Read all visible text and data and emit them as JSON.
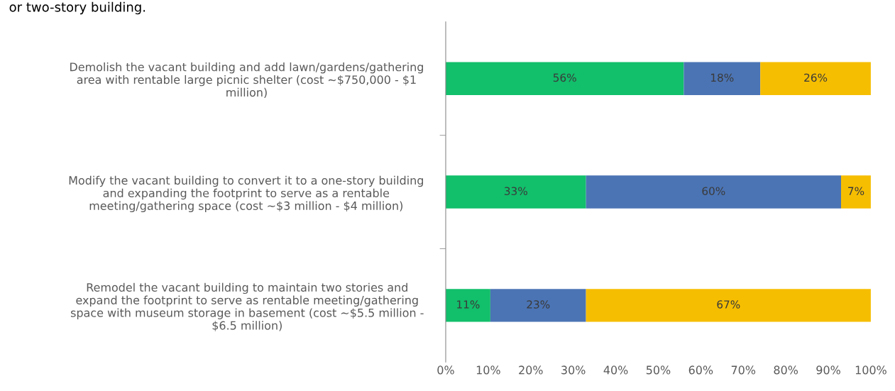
{
  "chart_data": {
    "type": "bar",
    "orientation": "horizontal",
    "stacked": true,
    "title": "or two-story building.",
    "categories": [
      "Demolish the vacant building and add lawn/gardens/gathering\narea with rentable large picnic shelter (cost ~$750,000 - $1\nmillion)",
      "Modify the vacant building to convert it to a one-story building\nand expanding the footprint to serve as a rentable\nmeeting/gathering space (cost ~$3 million - $4 million)",
      "Remodel the vacant building to maintain two stories and\nexpand the footprint to serve as rentable meeting/gathering\nspace with museum storage in basement (cost ~$5.5 million -\n$6.5 million)"
    ],
    "series": [
      {
        "color": "#12bf6b",
        "values": [
          56,
          33,
          10.5
        ],
        "value_labels": [
          "56%",
          "33%",
          "11%"
        ]
      },
      {
        "color": "#4b74b4",
        "values": [
          18,
          60,
          22.5
        ],
        "value_labels": [
          "18%",
          "60%",
          "23%"
        ]
      },
      {
        "color": "#f6be00",
        "values": [
          26,
          7,
          67
        ],
        "value_labels": [
          "26%",
          "7%",
          "67%"
        ]
      }
    ],
    "xlim": [
      0,
      100
    ],
    "xticks": [
      {
        "value": 0,
        "label": "0%"
      },
      {
        "value": 10,
        "label": "10%"
      },
      {
        "value": 20,
        "label": "20%"
      },
      {
        "value": 30,
        "label": "30%"
      },
      {
        "value": 40,
        "label": "40%"
      },
      {
        "value": 50,
        "label": "50%"
      },
      {
        "value": 60,
        "label": "60%"
      },
      {
        "value": 70,
        "label": "70%"
      },
      {
        "value": 80,
        "label": "80%"
      },
      {
        "value": 90,
        "label": "90%"
      },
      {
        "value": 100,
        "label": "100%"
      }
    ],
    "grid": false,
    "legend": false
  }
}
